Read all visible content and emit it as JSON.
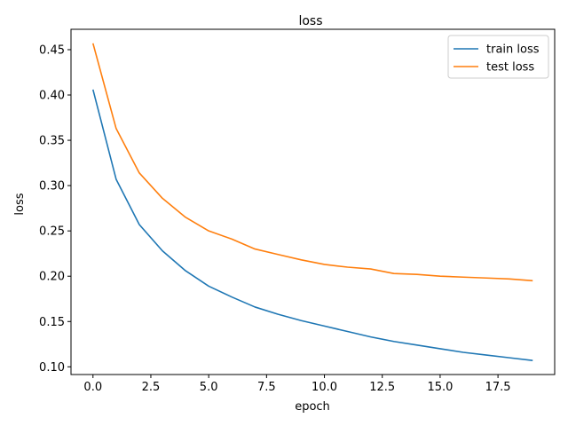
{
  "chart_data": {
    "type": "line",
    "title": "loss",
    "xlabel": "epoch",
    "ylabel": "loss",
    "xlim": [
      -0.95,
      19.95
    ],
    "ylim": [
      0.0915,
      0.4725
    ],
    "xticks": [
      0.0,
      2.5,
      5.0,
      7.5,
      10.0,
      12.5,
      15.0,
      17.5
    ],
    "xtick_labels": [
      "0.0",
      "2.5",
      "5.0",
      "7.5",
      "10.0",
      "12.5",
      "15.0",
      "17.5"
    ],
    "yticks": [
      0.1,
      0.15,
      0.2,
      0.25,
      0.3,
      0.35,
      0.4,
      0.45
    ],
    "ytick_labels": [
      "0.10",
      "0.15",
      "0.20",
      "0.25",
      "0.30",
      "0.35",
      "0.40",
      "0.45"
    ],
    "grid": false,
    "legend_position": "top-right",
    "x": [
      0,
      1,
      2,
      3,
      4,
      5,
      6,
      7,
      8,
      9,
      10,
      11,
      12,
      13,
      14,
      15,
      16,
      17,
      18,
      19
    ],
    "series": [
      {
        "name": "train loss",
        "color": "#1f77b4",
        "values": [
          0.406,
          0.307,
          0.257,
          0.228,
          0.206,
          0.189,
          0.177,
          0.166,
          0.158,
          0.151,
          0.145,
          0.139,
          0.133,
          0.128,
          0.124,
          0.12,
          0.116,
          0.113,
          0.11,
          0.107
        ]
      },
      {
        "name": "test loss",
        "color": "#ff7f0e",
        "values": [
          0.457,
          0.363,
          0.314,
          0.286,
          0.265,
          0.25,
          0.241,
          0.23,
          0.224,
          0.218,
          0.213,
          0.21,
          0.208,
          0.203,
          0.202,
          0.2,
          0.199,
          0.198,
          0.197,
          0.195
        ]
      }
    ]
  }
}
